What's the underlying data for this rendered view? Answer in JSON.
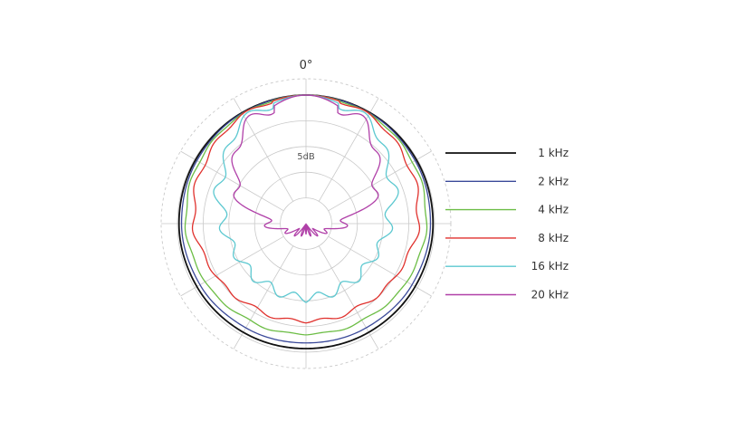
{
  "chart_data": {
    "type": "polar",
    "angle_unit": "degrees",
    "angle_label": "0°",
    "ring_label": "5dB",
    "r_max_db": 0,
    "r_min_db": -25,
    "ring_step_db": 5,
    "spoke_step_deg": 30,
    "legend_position": "right",
    "series": [
      {
        "name": "1 kHz",
        "color": "#111111",
        "angles": [
          0,
          30,
          60,
          90,
          120,
          150,
          180
        ],
        "values_db": [
          0,
          -0.1,
          -0.2,
          -0.3,
          -0.5,
          -0.6,
          -0.7
        ]
      },
      {
        "name": "2 kHz",
        "color": "#3b4a9a",
        "angles": [
          0,
          30,
          60,
          90,
          120,
          150,
          180
        ],
        "values_db": [
          0,
          -0.2,
          -0.5,
          -0.8,
          -1.2,
          -1.6,
          -1.8
        ]
      },
      {
        "name": "4 kHz",
        "color": "#6cbd45",
        "angles": [
          0,
          30,
          60,
          90,
          120,
          150,
          180
        ],
        "values_db": [
          0,
          -0.4,
          -1.0,
          -1.6,
          -2.4,
          -3.2,
          -3.5
        ]
      },
      {
        "name": "8 kHz",
        "color": "#e0312d",
        "angles": [
          0,
          30,
          60,
          90,
          120,
          150,
          180
        ],
        "values_db": [
          0,
          -0.6,
          -2.0,
          -3.2,
          -4.8,
          -5.8,
          -6.0
        ]
      },
      {
        "name": "16 kHz",
        "color": "#5cc8d0",
        "angles": [
          0,
          30,
          60,
          90,
          120,
          150,
          180
        ],
        "values_db": [
          0,
          -1.5,
          -6.0,
          -9.0,
          -10.5,
          -10.8,
          -10.5
        ]
      },
      {
        "name": "20 kHz",
        "color": "#b040a8",
        "angles": [
          0,
          30,
          60,
          90,
          120,
          150,
          180
        ],
        "values_db": [
          0,
          -2.5,
          -9.0,
          -18.0,
          -22.0,
          -23.5,
          -24.0
        ]
      }
    ]
  }
}
